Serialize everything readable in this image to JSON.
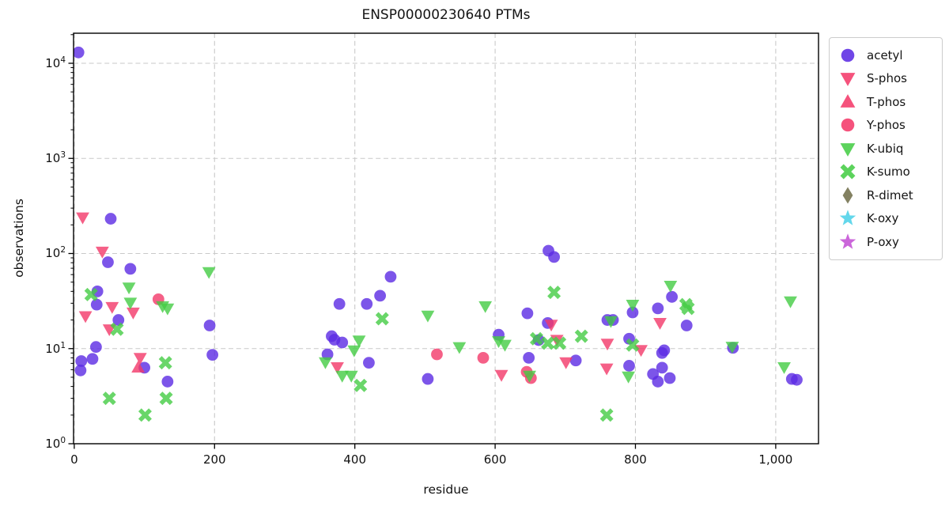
{
  "figure": {
    "background": "#ffffff"
  },
  "chart_data": {
    "type": "scatter",
    "title": "ENSP00000230640 PTMs",
    "xlabel": "residue",
    "ylabel": "observations",
    "x_axis": {
      "min": -1,
      "max": 1061,
      "tick_values": [
        0,
        200,
        400,
        600,
        800,
        1000
      ],
      "tick_labels": [
        "0",
        "200",
        "400",
        "600",
        "800",
        "1,000"
      ]
    },
    "y_axis": {
      "scale": "log",
      "min": 1,
      "max": 20700,
      "tick_values": [
        1,
        10,
        100,
        1000,
        10000
      ],
      "tick_labels": [
        {
          "base": "10",
          "exp": "0"
        },
        {
          "base": "10",
          "exp": "1"
        },
        {
          "base": "10",
          "exp": "2"
        },
        {
          "base": "10",
          "exp": "3"
        },
        {
          "base": "10",
          "exp": "4"
        }
      ]
    },
    "grid": {
      "show": true,
      "color": "#c9c9c9",
      "dash": "6 3.8"
    },
    "spine_color": "#000000",
    "marker_alpha": 0.8,
    "legend_position": "outside-upper-right",
    "series": [
      {
        "name": "acetyl",
        "marker": "circle",
        "color": "#5B2BE3",
        "points": [
          [
            6,
            13000
          ],
          [
            52,
            232
          ],
          [
            48,
            81
          ],
          [
            80,
            69
          ],
          [
            33,
            40
          ],
          [
            32,
            29
          ],
          [
            63,
            20
          ],
          [
            31,
            10.4
          ],
          [
            26,
            7.8
          ],
          [
            10,
            7.4
          ],
          [
            9,
            5.9
          ],
          [
            100,
            6.3
          ],
          [
            133,
            4.5
          ],
          [
            193,
            17.5
          ],
          [
            197,
            8.6
          ],
          [
            361,
            8.7
          ],
          [
            367,
            13.5
          ],
          [
            371,
            12.4
          ],
          [
            382,
            11.6
          ],
          [
            378,
            29.5
          ],
          [
            417,
            29.5
          ],
          [
            420,
            7.1
          ],
          [
            436,
            36
          ],
          [
            451,
            57
          ],
          [
            504,
            4.8
          ],
          [
            605,
            14
          ],
          [
            646,
            23.5
          ],
          [
            648,
            8
          ],
          [
            662,
            12.3
          ],
          [
            675,
            18.6
          ],
          [
            676,
            107
          ],
          [
            684,
            92
          ],
          [
            715,
            7.5
          ],
          [
            760,
            20
          ],
          [
            768,
            20
          ],
          [
            791,
            12.7
          ],
          [
            791,
            6.6
          ],
          [
            796,
            24
          ],
          [
            825,
            5.4
          ],
          [
            832,
            4.5
          ],
          [
            838,
            6.3
          ],
          [
            849,
            4.9
          ],
          [
            838,
            9
          ],
          [
            841,
            9.6
          ],
          [
            832,
            26.5
          ],
          [
            852,
            35
          ],
          [
            873,
            17.5
          ],
          [
            939,
            10.2
          ],
          [
            1023,
            4.8
          ],
          [
            1030,
            4.7
          ]
        ]
      },
      {
        "name": "S-phos",
        "marker": "triangle-down",
        "color": "#F33869",
        "points": [
          [
            12,
            240
          ],
          [
            40,
            105
          ],
          [
            16,
            22
          ],
          [
            50,
            16
          ],
          [
            54,
            27.5
          ],
          [
            84,
            24
          ],
          [
            94,
            8
          ],
          [
            375,
            6.4
          ],
          [
            609,
            5.3
          ],
          [
            680,
            17.9
          ],
          [
            688,
            12.4
          ],
          [
            701,
            7.2
          ],
          [
            759,
            6.2
          ],
          [
            760,
            11.3
          ],
          [
            808,
            9.7
          ],
          [
            835,
            18.7
          ]
        ]
      },
      {
        "name": "T-phos",
        "marker": "triangle-up",
        "color": "#F33869",
        "points": [
          [
            91,
            6.3
          ]
        ]
      },
      {
        "name": "Y-phos",
        "marker": "circle",
        "color": "#F33869",
        "points": [
          [
            120,
            33
          ],
          [
            517,
            8.7
          ],
          [
            583,
            8
          ],
          [
            645,
            5.7
          ],
          [
            651,
            4.9
          ]
        ]
      },
      {
        "name": "K-ubiq",
        "marker": "triangle-down",
        "color": "#44CC44",
        "points": [
          [
            78,
            44
          ],
          [
            80,
            30.5
          ],
          [
            126,
            28
          ],
          [
            133,
            26.5
          ],
          [
            192,
            64
          ],
          [
            358,
            7.2
          ],
          [
            382,
            5.2
          ],
          [
            395,
            5.2
          ],
          [
            399,
            9.6
          ],
          [
            406,
            12.2
          ],
          [
            504,
            22.3
          ],
          [
            549,
            10.4
          ],
          [
            586,
            28
          ],
          [
            605,
            12
          ],
          [
            614,
            11
          ],
          [
            649,
            5.2
          ],
          [
            765,
            19.5
          ],
          [
            790,
            5.1
          ],
          [
            796,
            29
          ],
          [
            850,
            46
          ],
          [
            938,
            10.5
          ],
          [
            1012,
            6.4
          ],
          [
            1021,
            31.5
          ]
        ]
      },
      {
        "name": "K-sumo",
        "marker": "x",
        "color": "#44CC44",
        "points": [
          [
            24,
            37
          ],
          [
            50,
            3
          ],
          [
            61,
            16
          ],
          [
            101,
            2
          ],
          [
            130,
            7.1
          ],
          [
            131,
            3
          ],
          [
            408,
            4.1
          ],
          [
            439,
            20.6
          ],
          [
            659,
            12.7
          ],
          [
            675,
            11.4
          ],
          [
            684,
            39
          ],
          [
            692,
            11.4
          ],
          [
            723,
            13.5
          ],
          [
            759,
            2
          ],
          [
            796,
            10.9
          ],
          [
            872,
            29
          ],
          [
            875,
            26.5
          ]
        ]
      },
      {
        "name": "R-dimet",
        "marker": "diamond",
        "color": "#716E4B",
        "points": []
      },
      {
        "name": "K-oxy",
        "marker": "star",
        "color": "#4CD1E8",
        "points": []
      },
      {
        "name": "P-oxy",
        "marker": "star",
        "color": "#C34FD4",
        "points": []
      }
    ]
  }
}
